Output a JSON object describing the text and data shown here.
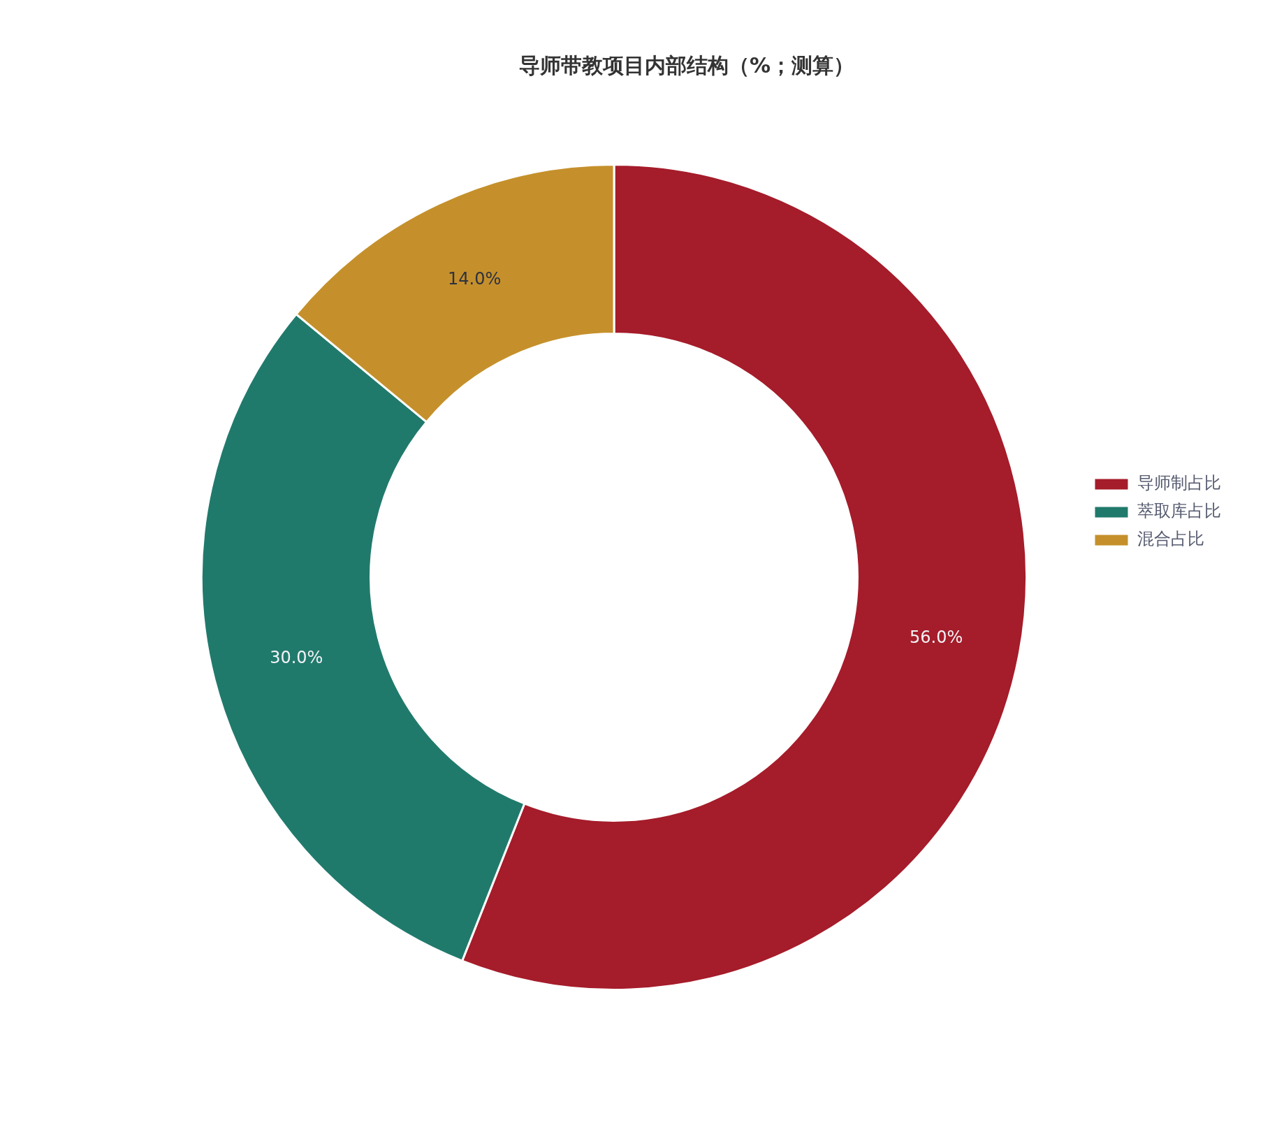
{
  "chart_data": {
    "type": "donut",
    "title": "导师带教项目内部结构（%；测算）",
    "categories": [
      "导师制占比",
      "萃取库占比",
      "混合占比"
    ],
    "values": [
      56,
      30,
      14
    ],
    "colors": [
      "#a51c2a",
      "#207a6c",
      "#c5902b"
    ],
    "value_labels": [
      "56.0%",
      "30.0%",
      "14.0%"
    ],
    "legend": "right"
  }
}
